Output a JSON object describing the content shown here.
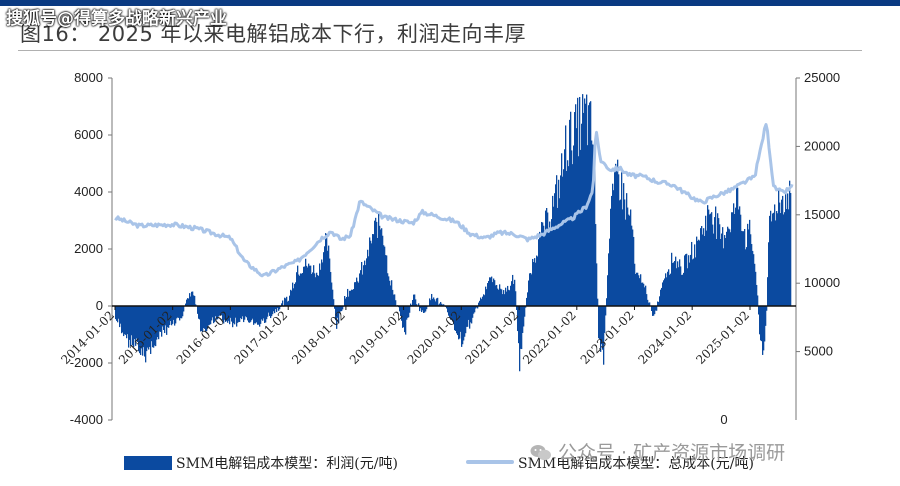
{
  "header": {
    "watermark": "搜狐号@得算多战略新兴产业",
    "title": "图16：   2025 年以来电解铝成本下行，利润走向丰厚"
  },
  "footer": {
    "watermark": "公众号 · 矿产资源市场调研"
  },
  "chart_data": {
    "type": "bar+line",
    "x_ticks": [
      "2014-01-02",
      "2015-01-02",
      "2016-01-02",
      "2017-01-02",
      "2018-01-02",
      "2019-01-02",
      "2020-01-02",
      "2021-01-02",
      "2022-01-02",
      "2023-01-02",
      "2024-01-02",
      "2025-01-02"
    ],
    "left_axis": {
      "ylim": [
        -4000,
        8000
      ],
      "ticks": [
        "8000",
        "6000",
        "4000",
        "2000",
        "0",
        "-2000",
        "-4000"
      ]
    },
    "right_axis": {
      "ylim": [
        0,
        25000
      ],
      "ticks": [
        "25000",
        "20000",
        "15000",
        "10000",
        "5000",
        "0"
      ]
    },
    "colors": {
      "profit": "#0b4aa0",
      "cost": "#a9c4e8"
    },
    "series": [
      {
        "name": "SMM电解铝成本模型：利润(元/吨)",
        "axis": "left",
        "points": [
          [
            "2014-01-02",
            -500
          ],
          [
            "2014-04-01",
            -1300
          ],
          [
            "2014-07-01",
            -1800
          ],
          [
            "2014-10-01",
            -1200
          ],
          [
            "2015-01-02",
            -600
          ],
          [
            "2015-03-01",
            -300
          ],
          [
            "2015-05-01",
            700
          ],
          [
            "2015-07-01",
            -1000
          ],
          [
            "2015-10-01",
            -400
          ],
          [
            "2016-01-02",
            -600
          ],
          [
            "2016-04-01",
            -500
          ],
          [
            "2016-07-01",
            -700
          ],
          [
            "2016-10-01",
            -200
          ],
          [
            "2017-01-02",
            300
          ],
          [
            "2017-03-01",
            1400
          ],
          [
            "2017-05-01",
            1500
          ],
          [
            "2017-07-01",
            1200
          ],
          [
            "2017-09-01",
            2400
          ],
          [
            "2017-11-01",
            -800
          ],
          [
            "2018-01-02",
            500
          ],
          [
            "2018-03-01",
            800
          ],
          [
            "2018-05-01",
            1600
          ],
          [
            "2018-07-01",
            2800
          ],
          [
            "2018-08-15",
            3100
          ],
          [
            "2018-10-01",
            1000
          ],
          [
            "2018-12-01",
            -200
          ],
          [
            "2019-01-02",
            -1000
          ],
          [
            "2019-03-01",
            400
          ],
          [
            "2019-05-01",
            -300
          ],
          [
            "2019-07-01",
            400
          ],
          [
            "2019-10-01",
            -200
          ],
          [
            "2019-12-01",
            -900
          ],
          [
            "2020-01-02",
            -1300
          ],
          [
            "2020-03-01",
            -500
          ],
          [
            "2020-05-01",
            300
          ],
          [
            "2020-07-01",
            1000
          ],
          [
            "2020-10-01",
            500
          ],
          [
            "2020-12-01",
            1000
          ],
          [
            "2021-01-02",
            -2200
          ],
          [
            "2021-03-01",
            1000
          ],
          [
            "2021-05-01",
            2400
          ],
          [
            "2021-07-01",
            3200
          ],
          [
            "2021-09-01",
            4200
          ],
          [
            "2021-11-01",
            6100
          ],
          [
            "2022-01-02",
            6500
          ],
          [
            "2022-03-01",
            7000
          ],
          [
            "2022-04-15",
            6000
          ],
          [
            "2022-05-15",
            -1000
          ],
          [
            "2022-06-15",
            -2000
          ],
          [
            "2022-08-01",
            3500
          ],
          [
            "2022-09-15",
            5000
          ],
          [
            "2022-11-01",
            3800
          ],
          [
            "2022-12-15",
            3000
          ],
          [
            "2023-01-02",
            1200
          ],
          [
            "2023-03-01",
            800
          ],
          [
            "2023-05-01",
            -500
          ],
          [
            "2023-07-01",
            1000
          ],
          [
            "2023-09-01",
            1800
          ],
          [
            "2023-11-01",
            1400
          ],
          [
            "2024-01-02",
            2000
          ],
          [
            "2024-03-01",
            2800
          ],
          [
            "2024-05-01",
            3600
          ],
          [
            "2024-07-01",
            2500
          ],
          [
            "2024-09-01",
            3200
          ],
          [
            "2024-10-15",
            4000
          ],
          [
            "2024-12-01",
            2500
          ],
          [
            "2025-01-02",
            2700
          ],
          [
            "2025-02-01",
            1500
          ],
          [
            "2025-03-01",
            -1000
          ],
          [
            "2025-03-20",
            -1800
          ],
          [
            "2025-04-10",
            -800
          ],
          [
            "2025-05-01",
            3000
          ],
          [
            "2025-06-15",
            3800
          ],
          [
            "2025-08-15",
            4000
          ],
          [
            "2025-09-15",
            4100
          ]
        ]
      },
      {
        "name": "SMM电解铝成本模型：总成本(元/吨)",
        "axis": "right",
        "points": [
          [
            "2014-01-02",
            14800
          ],
          [
            "2014-06-01",
            14200
          ],
          [
            "2015-01-02",
            14300
          ],
          [
            "2015-06-01",
            14000
          ],
          [
            "2016-01-02",
            13300
          ],
          [
            "2016-04-01",
            11600
          ],
          [
            "2016-08-01",
            10500
          ],
          [
            "2016-12-01",
            11200
          ],
          [
            "2017-03-01",
            11600
          ],
          [
            "2017-06-01",
            12600
          ],
          [
            "2017-08-01",
            13300
          ],
          [
            "2017-10-01",
            13800
          ],
          [
            "2017-12-01",
            13200
          ],
          [
            "2018-02-01",
            13500
          ],
          [
            "2018-04-01",
            16000
          ],
          [
            "2018-06-01",
            15500
          ],
          [
            "2018-09-01",
            14800
          ],
          [
            "2018-12-01",
            14600
          ],
          [
            "2019-03-01",
            14400
          ],
          [
            "2019-05-01",
            15200
          ],
          [
            "2019-08-01",
            14900
          ],
          [
            "2019-12-01",
            14500
          ],
          [
            "2020-03-01",
            13600
          ],
          [
            "2020-06-01",
            13300
          ],
          [
            "2020-09-01",
            13700
          ],
          [
            "2020-12-01",
            13600
          ],
          [
            "2021-03-01",
            13200
          ],
          [
            "2021-06-01",
            13600
          ],
          [
            "2021-09-01",
            14200
          ],
          [
            "2021-12-01",
            14700
          ],
          [
            "2022-03-01",
            15600
          ],
          [
            "2022-04-15",
            16800
          ],
          [
            "2022-05-01",
            21300
          ],
          [
            "2022-06-01",
            19000
          ],
          [
            "2022-08-01",
            18300
          ],
          [
            "2022-10-01",
            18400
          ],
          [
            "2022-12-01",
            17900
          ],
          [
            "2023-03-01",
            17800
          ],
          [
            "2023-06-01",
            17400
          ],
          [
            "2023-09-01",
            17200
          ],
          [
            "2023-12-01",
            16500
          ],
          [
            "2024-03-01",
            15900
          ],
          [
            "2024-06-01",
            16400
          ],
          [
            "2024-09-01",
            16800
          ],
          [
            "2024-12-01",
            17400
          ],
          [
            "2025-02-01",
            17800
          ],
          [
            "2025-04-15",
            21800
          ],
          [
            "2025-06-01",
            17000
          ],
          [
            "2025-08-01",
            16600
          ],
          [
            "2025-10-01",
            17100
          ]
        ]
      }
    ],
    "legend_position": "bottom"
  }
}
